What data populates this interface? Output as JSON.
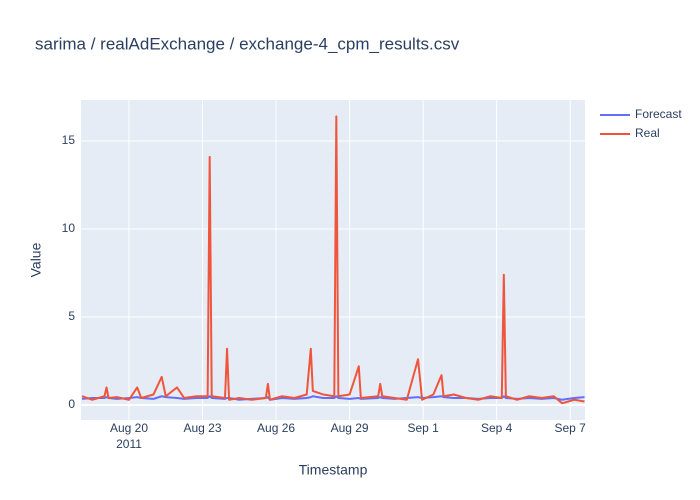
{
  "chart_data": {
    "type": "line",
    "title": "sarima / realAdExchange / exchange-4_cpm_results.csv",
    "x_label": "Timestamp",
    "y_label": "Value",
    "x": [
      "2011-08-18T02:00",
      "2011-08-18T12:00",
      "2011-08-19T00:00",
      "2011-08-19T02:00",
      "2011-08-19T04:00",
      "2011-08-19T12:00",
      "2011-08-20T00:00",
      "2011-08-20T08:00",
      "2011-08-20T12:00",
      "2011-08-21T00:00",
      "2011-08-21T08:00",
      "2011-08-21T12:00",
      "2011-08-21T23:00",
      "2011-08-22T06:00",
      "2011-08-22T18:00",
      "2011-08-23T05:00",
      "2011-08-23T07:00",
      "2011-08-23T09:00",
      "2011-08-23T22:00",
      "2011-08-24T00:00",
      "2011-08-24T02:00",
      "2011-08-24T12:00",
      "2011-08-25T00:00",
      "2011-08-25T14:00",
      "2011-08-25T16:00",
      "2011-08-25T18:00",
      "2011-08-26T06:00",
      "2011-08-26T18:00",
      "2011-08-27T06:00",
      "2011-08-27T10:00",
      "2011-08-27T12:00",
      "2011-08-27T22:00",
      "2011-08-28T09:00",
      "2011-08-28T11:00",
      "2011-08-28T13:00",
      "2011-08-29T00:00",
      "2011-08-29T09:00",
      "2011-08-29T11:00",
      "2011-08-30T04:00",
      "2011-08-30T06:00",
      "2011-08-30T08:00",
      "2011-08-30T20:00",
      "2011-08-31T08:00",
      "2011-08-31T19:00",
      "2011-08-31T23:00",
      "2011-09-01T10:00",
      "2011-09-01T18:00",
      "2011-09-01T20:00",
      "2011-09-02T06:00",
      "2011-09-02T18:00",
      "2011-09-03T06:00",
      "2011-09-03T18:00",
      "2011-09-04T05:00",
      "2011-09-04T07:00",
      "2011-09-04T09:00",
      "2011-09-04T20:00",
      "2011-09-05T08:00",
      "2011-09-05T20:00",
      "2011-09-06T08:00",
      "2011-09-06T16:00",
      "2011-09-07T04:00",
      "2011-09-07T14:00"
    ],
    "series": [
      {
        "name": "Forecast",
        "color": "#636efa",
        "values": [
          0.35,
          0.4,
          0.4,
          0.45,
          0.4,
          0.35,
          0.4,
          0.45,
          0.4,
          0.35,
          0.5,
          0.45,
          0.4,
          0.35,
          0.4,
          0.4,
          0.5,
          0.4,
          0.35,
          0.4,
          0.4,
          0.3,
          0.35,
          0.4,
          0.45,
          0.3,
          0.4,
          0.35,
          0.4,
          0.45,
          0.5,
          0.4,
          0.4,
          0.5,
          0.4,
          0.35,
          0.4,
          0.35,
          0.4,
          0.45,
          0.4,
          0.35,
          0.4,
          0.45,
          0.4,
          0.45,
          0.5,
          0.45,
          0.4,
          0.4,
          0.35,
          0.4,
          0.4,
          0.5,
          0.4,
          0.35,
          0.4,
          0.35,
          0.4,
          0.3,
          0.4,
          0.45
        ]
      },
      {
        "name": "Real",
        "color": "#ef553b",
        "values": [
          0.5,
          0.3,
          0.5,
          1.0,
          0.4,
          0.45,
          0.3,
          1.0,
          0.4,
          0.6,
          1.6,
          0.5,
          1.0,
          0.4,
          0.5,
          0.5,
          14.1,
          0.5,
          0.4,
          3.2,
          0.3,
          0.4,
          0.3,
          0.4,
          1.2,
          0.3,
          0.5,
          0.4,
          0.6,
          3.2,
          0.8,
          0.6,
          0.5,
          16.4,
          0.5,
          0.6,
          2.2,
          0.4,
          0.5,
          1.2,
          0.5,
          0.4,
          0.3,
          2.6,
          0.3,
          0.6,
          1.7,
          0.5,
          0.6,
          0.4,
          0.3,
          0.5,
          0.4,
          7.4,
          0.5,
          0.3,
          0.5,
          0.4,
          0.5,
          0.1,
          0.3,
          0.2
        ]
      }
    ],
    "xlim": [
      "2011-08-18T01:00",
      "2011-09-07T14:30"
    ],
    "xticks": [
      {
        "value": "2011-08-20T00:00",
        "label": "Aug 20"
      },
      {
        "value": "2011-08-23T00:00",
        "label": "Aug 23"
      },
      {
        "value": "2011-08-26T00:00",
        "label": "Aug 26"
      },
      {
        "value": "2011-08-29T00:00",
        "label": "Aug 29"
      },
      {
        "value": "2011-09-01T00:00",
        "label": "Sep 1"
      },
      {
        "value": "2011-09-04T00:00",
        "label": "Sep 4"
      },
      {
        "value": "2011-09-07T00:00",
        "label": "Sep 7"
      }
    ],
    "xtick_year": "2011",
    "ylim": [
      -0.85,
      17.33
    ],
    "yticks": [
      0,
      5,
      10,
      15
    ],
    "grid": true
  }
}
